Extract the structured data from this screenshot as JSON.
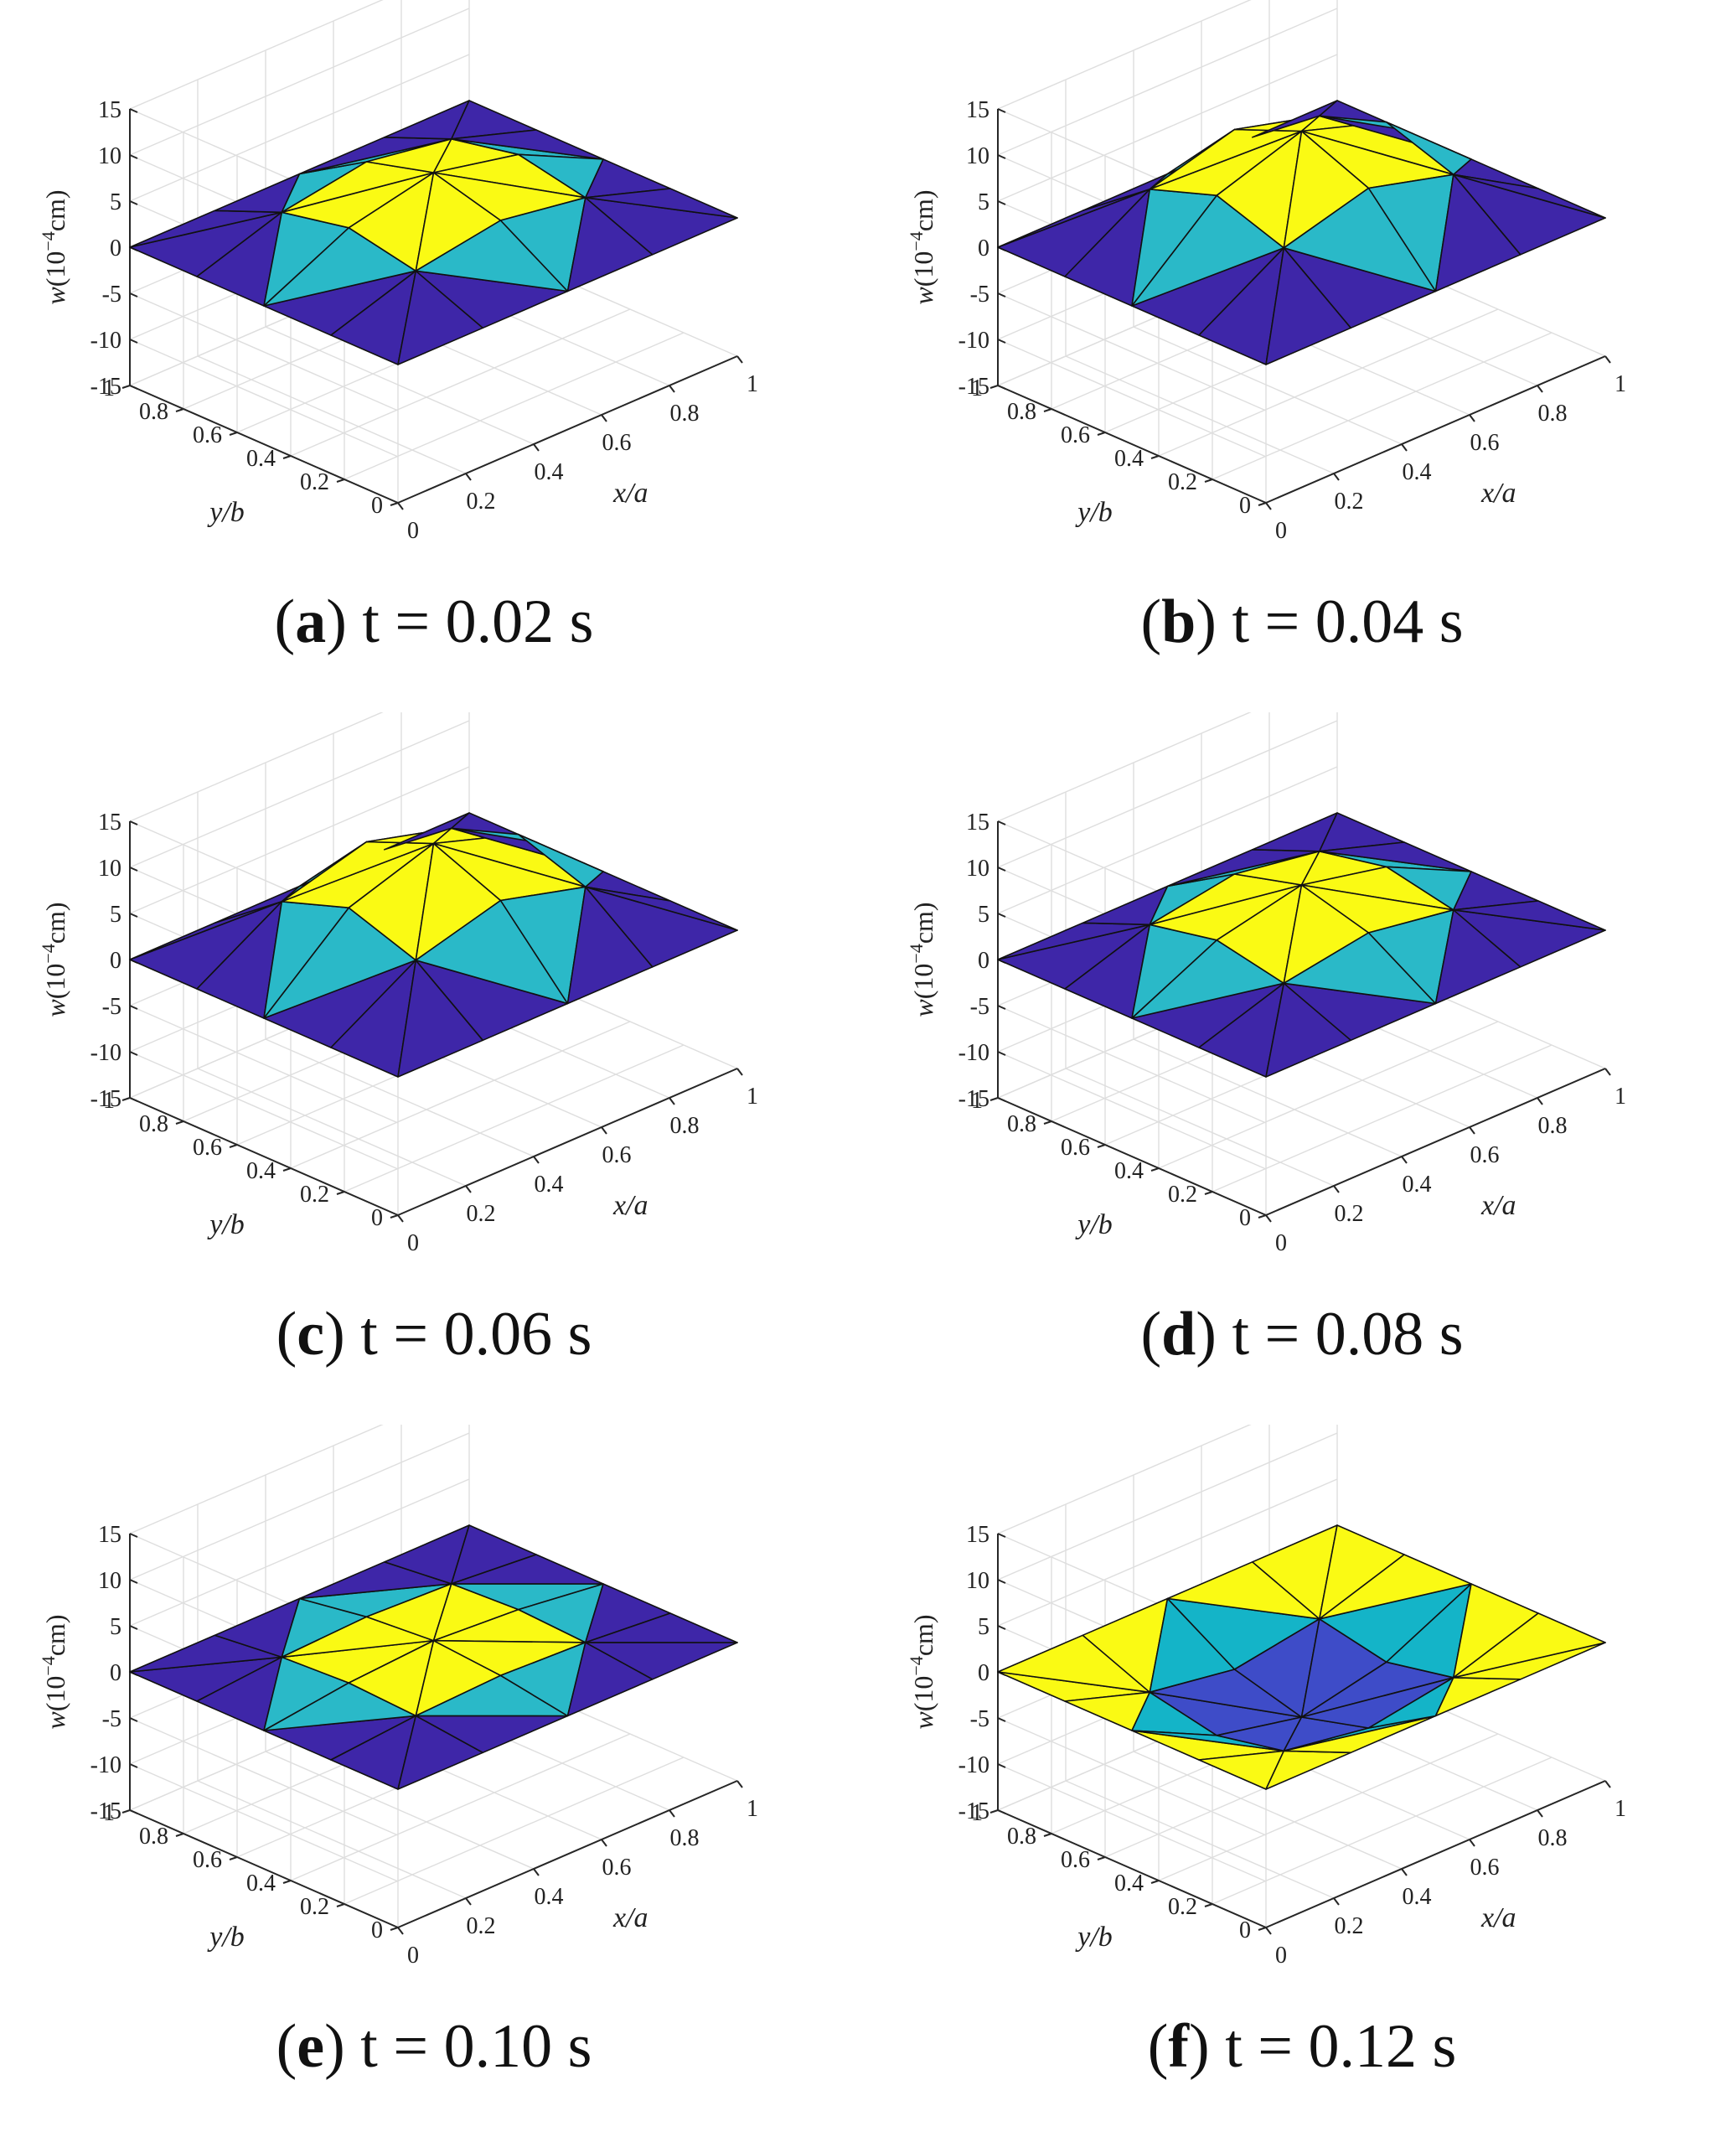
{
  "colors": {
    "grid": "#dedede",
    "axis": "#262626",
    "edge": "#111111",
    "palette_default": [
      "#3e26a8",
      "#4c6ef6",
      "#2ab9c8",
      "#b8bb3a",
      "#fafa14"
    ],
    "palette_f": [
      "#3e4cc8",
      "#2f8cf0",
      "#14b4c8",
      "#f5a852",
      "#fafa14"
    ]
  },
  "chart_data": [
    {
      "type": "surface",
      "panel_label": "a",
      "caption": "t = 0.02 s",
      "title": "",
      "xlabel": "x/a",
      "ylabel": "y/b",
      "zlabel": "w(10^-4 cm)",
      "zlabel_base": "w(10",
      "zlabel_exp": "−4",
      "zlabel_unit": "cm)",
      "x_ticks": [
        "0",
        "0.2",
        "0.4",
        "0.6",
        "0.8",
        "1"
      ],
      "y_ticks": [
        "0",
        "0.2",
        "0.4",
        "0.6",
        "0.8",
        "1"
      ],
      "z_ticks": [
        "15",
        "10",
        "5",
        "0",
        "-5",
        "-10",
        "-15"
      ],
      "xlim": [
        0,
        1
      ],
      "ylim": [
        0,
        1
      ],
      "zlim": [
        -15,
        15
      ],
      "grid": true,
      "x": [
        0,
        0.25,
        0.5,
        0.75,
        1
      ],
      "y": [
        0,
        0.25,
        0.5,
        0.75,
        1
      ],
      "z": [
        [
          0,
          0,
          0,
          0,
          0
        ],
        [
          0,
          3,
          4.5,
          3,
          0
        ],
        [
          0,
          4.5,
          6.5,
          4.5,
          0
        ],
        [
          0,
          3,
          4.5,
          3,
          0
        ],
        [
          0,
          0,
          0,
          0,
          0
        ]
      ],
      "palette": "default"
    },
    {
      "type": "surface",
      "panel_label": "b",
      "caption": "t = 0.04 s",
      "title": "",
      "xlabel": "x/a",
      "ylabel": "y/b",
      "zlabel": "w(10^-4 cm)",
      "zlabel_base": "w(10",
      "zlabel_exp": "−4",
      "zlabel_unit": "cm)",
      "x_ticks": [
        "0",
        "0.2",
        "0.4",
        "0.6",
        "0.8",
        "1"
      ],
      "y_ticks": [
        "0",
        "0.2",
        "0.4",
        "0.6",
        "0.8",
        "1"
      ],
      "z_ticks": [
        "15",
        "10",
        "5",
        "0",
        "-5",
        "-10",
        "-15"
      ],
      "xlim": [
        0,
        1
      ],
      "ylim": [
        0,
        1
      ],
      "zlim": [
        -15,
        15
      ],
      "grid": true,
      "x": [
        0,
        0.25,
        0.5,
        0.75,
        1
      ],
      "y": [
        0,
        0.25,
        0.5,
        0.75,
        1
      ],
      "z": [
        [
          0,
          0,
          0,
          0,
          0
        ],
        [
          0,
          5.5,
          8,
          5.5,
          0
        ],
        [
          0,
          8,
          11,
          8,
          0
        ],
        [
          0,
          5.5,
          8,
          5.5,
          0
        ],
        [
          0,
          0,
          0,
          0,
          0
        ]
      ],
      "palette": "default"
    },
    {
      "type": "surface",
      "panel_label": "c",
      "caption": "t = 0.06 s",
      "title": "",
      "xlabel": "x/a",
      "ylabel": "y/b",
      "zlabel": "w(10^-4 cm)",
      "zlabel_base": "w(10",
      "zlabel_exp": "−4",
      "zlabel_unit": "cm)",
      "x_ticks": [
        "0",
        "0.2",
        "0.4",
        "0.6",
        "0.8",
        "1"
      ],
      "y_ticks": [
        "0",
        "0.2",
        "0.4",
        "0.6",
        "0.8",
        "1"
      ],
      "z_ticks": [
        "15",
        "10",
        "5",
        "0",
        "-5",
        "-10",
        "-15"
      ],
      "xlim": [
        0,
        1
      ],
      "ylim": [
        0,
        1
      ],
      "zlim": [
        -15,
        15
      ],
      "grid": true,
      "x": [
        0,
        0.25,
        0.5,
        0.75,
        1
      ],
      "y": [
        0,
        0.25,
        0.5,
        0.75,
        1
      ],
      "z": [
        [
          0,
          0,
          0,
          0,
          0
        ],
        [
          0,
          5.5,
          8,
          5.5,
          0
        ],
        [
          0,
          8,
          11,
          8,
          0
        ],
        [
          0,
          5.5,
          8,
          5.5,
          0
        ],
        [
          0,
          0,
          0,
          0,
          0
        ]
      ],
      "palette": "default"
    },
    {
      "type": "surface",
      "panel_label": "d",
      "caption": "t = 0.08 s",
      "title": "",
      "xlabel": "x/a",
      "ylabel": "y/b",
      "zlabel": "w(10^-4 cm)",
      "zlabel_base": "w(10",
      "zlabel_exp": "−4",
      "zlabel_unit": "cm)",
      "x_ticks": [
        "0",
        "0.2",
        "0.4",
        "0.6",
        "0.8",
        "1"
      ],
      "y_ticks": [
        "0",
        "0.2",
        "0.4",
        "0.6",
        "0.8",
        "1"
      ],
      "z_ticks": [
        "15",
        "10",
        "5",
        "0",
        "-5",
        "-10",
        "-15"
      ],
      "xlim": [
        0,
        1
      ],
      "ylim": [
        0,
        1
      ],
      "zlim": [
        -15,
        15
      ],
      "grid": true,
      "x": [
        0,
        0.25,
        0.5,
        0.75,
        1
      ],
      "y": [
        0,
        0.25,
        0.5,
        0.75,
        1
      ],
      "z": [
        [
          0,
          0,
          0,
          0,
          0
        ],
        [
          0,
          3,
          4.5,
          3,
          0
        ],
        [
          0,
          4.5,
          6.5,
          4.5,
          0
        ],
        [
          0,
          3,
          4.5,
          3,
          0
        ],
        [
          0,
          0,
          0,
          0,
          0
        ]
      ],
      "palette": "default"
    },
    {
      "type": "surface",
      "panel_label": "e",
      "caption": "t = 0.10 s",
      "title": "",
      "xlabel": "x/a",
      "ylabel": "y/b",
      "zlabel": "w(10^-4 cm)",
      "zlabel_base": "w(10",
      "zlabel_exp": "−4",
      "zlabel_unit": "cm)",
      "x_ticks": [
        "0",
        "0.2",
        "0.4",
        "0.6",
        "0.8",
        "1"
      ],
      "y_ticks": [
        "0",
        "0.2",
        "0.4",
        "0.6",
        "0.8",
        "1"
      ],
      "z_ticks": [
        "15",
        "10",
        "5",
        "0",
        "-5",
        "-10",
        "-15"
      ],
      "xlim": [
        0,
        1
      ],
      "ylim": [
        0,
        1
      ],
      "zlim": [
        -15,
        15
      ],
      "grid": true,
      "x": [
        0,
        0.25,
        0.5,
        0.75,
        1
      ],
      "y": [
        0,
        0.25,
        0.5,
        0.75,
        1
      ],
      "z": [
        [
          0,
          0,
          0,
          0,
          0
        ],
        [
          0,
          0.8,
          1.2,
          0.8,
          0
        ],
        [
          0,
          1.2,
          1.8,
          1.2,
          0
        ],
        [
          0,
          0.8,
          1.2,
          0.8,
          0
        ],
        [
          0,
          0,
          0,
          0,
          0
        ]
      ],
      "palette": "default"
    },
    {
      "type": "surface",
      "panel_label": "f",
      "caption": "t = 0.12 s",
      "title": "",
      "xlabel": "x/a",
      "ylabel": "y/b",
      "zlabel": "w(10^-4 cm)",
      "zlabel_base": "w(10",
      "zlabel_exp": "−4",
      "zlabel_unit": "cm)",
      "x_ticks": [
        "0",
        "0.2",
        "0.4",
        "0.6",
        "0.8",
        "1"
      ],
      "y_ticks": [
        "0",
        "0.2",
        "0.4",
        "0.6",
        "0.8",
        "1"
      ],
      "z_ticks": [
        "15",
        "10",
        "5",
        "0",
        "-5",
        "-10",
        "-15"
      ],
      "xlim": [
        0,
        1
      ],
      "ylim": [
        0,
        1
      ],
      "zlim": [
        -15,
        15
      ],
      "grid": true,
      "x": [
        0,
        0.25,
        0.5,
        0.75,
        1
      ],
      "y": [
        0,
        0.25,
        0.5,
        0.75,
        1
      ],
      "z": [
        [
          0,
          0,
          0,
          0,
          0
        ],
        [
          0,
          -3,
          -4.5,
          -3,
          0
        ],
        [
          0,
          -4.5,
          -6.5,
          -4.5,
          0
        ],
        [
          0,
          -3,
          -4.5,
          -3,
          0
        ],
        [
          0,
          0,
          0,
          0,
          0
        ]
      ],
      "palette": "f"
    }
  ]
}
